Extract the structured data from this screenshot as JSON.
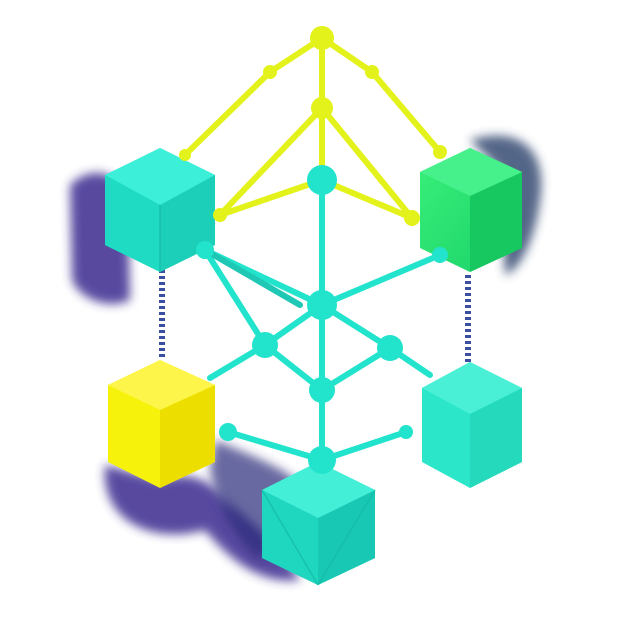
{
  "illustration": {
    "icon": "network-cube-graph-icon",
    "colors": {
      "background": "#ffffff",
      "yellow_green": "#e3f21a",
      "yellow_bright": "#f7f20c",
      "teal": "#22e3cc",
      "teal_dark": "#14b9a6",
      "green": "#1fe57a",
      "green_dark": "#12c35f",
      "shadow_purple": "#3b2c8f",
      "shadow_navy": "#2a3f6b",
      "dashed_link": "#3a4fa0"
    }
  }
}
